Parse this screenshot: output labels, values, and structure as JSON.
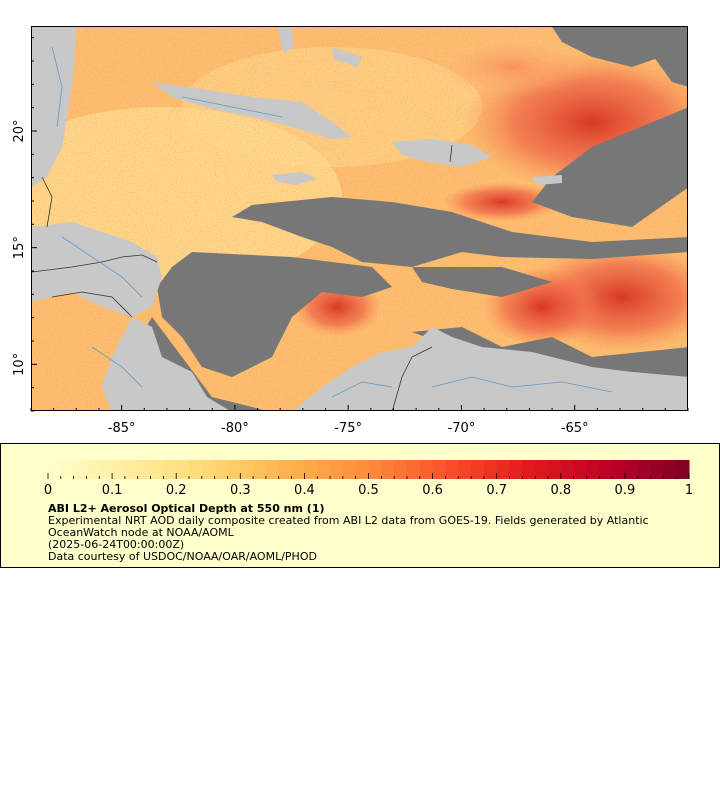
{
  "map": {
    "x_tick_labels": [
      "-85°",
      "-80°",
      "-75°",
      "-70°",
      "-65°"
    ],
    "x_ticks": [
      -85,
      -80,
      -75,
      -70,
      -65
    ],
    "y_tick_labels": [
      "20°",
      "15°",
      "10°"
    ],
    "y_ticks": [
      20,
      15,
      10
    ],
    "lon_range": [
      -89,
      -60
    ],
    "lat_range": [
      8,
      24.5
    ],
    "colors": {
      "land": "#c8c8c8",
      "cloud_nodata": "#777777",
      "rivers": "#6699cc",
      "borders": "#333333"
    }
  },
  "colorbar": {
    "tick_labels": [
      "0",
      "0.1",
      "0.2",
      "0.3",
      "0.4",
      "0.5",
      "0.6",
      "0.7",
      "0.8",
      "0.9",
      "1"
    ],
    "range": [
      0,
      1
    ],
    "colors": [
      "#ffffcc",
      "#ffeda0",
      "#fed976",
      "#feb24c",
      "#fd8d3c",
      "#fc4e2a",
      "#e31a1c",
      "#bd0026",
      "#800026"
    ]
  },
  "legend": {
    "title": "ABI L2+ Aerosol Optical Depth at 550 nm (1)",
    "line1": "Experimental NRT AOD daily composite created from ABI L2 data from GOES-19. Fields generated by Atlantic",
    "line2": "OceanWatch node at NOAA/AOML",
    "line3": "(2025-06-24T00:00:00Z)",
    "line4": "Data courtesy of USDOC/NOAA/OAR/AOML/PHOD"
  }
}
